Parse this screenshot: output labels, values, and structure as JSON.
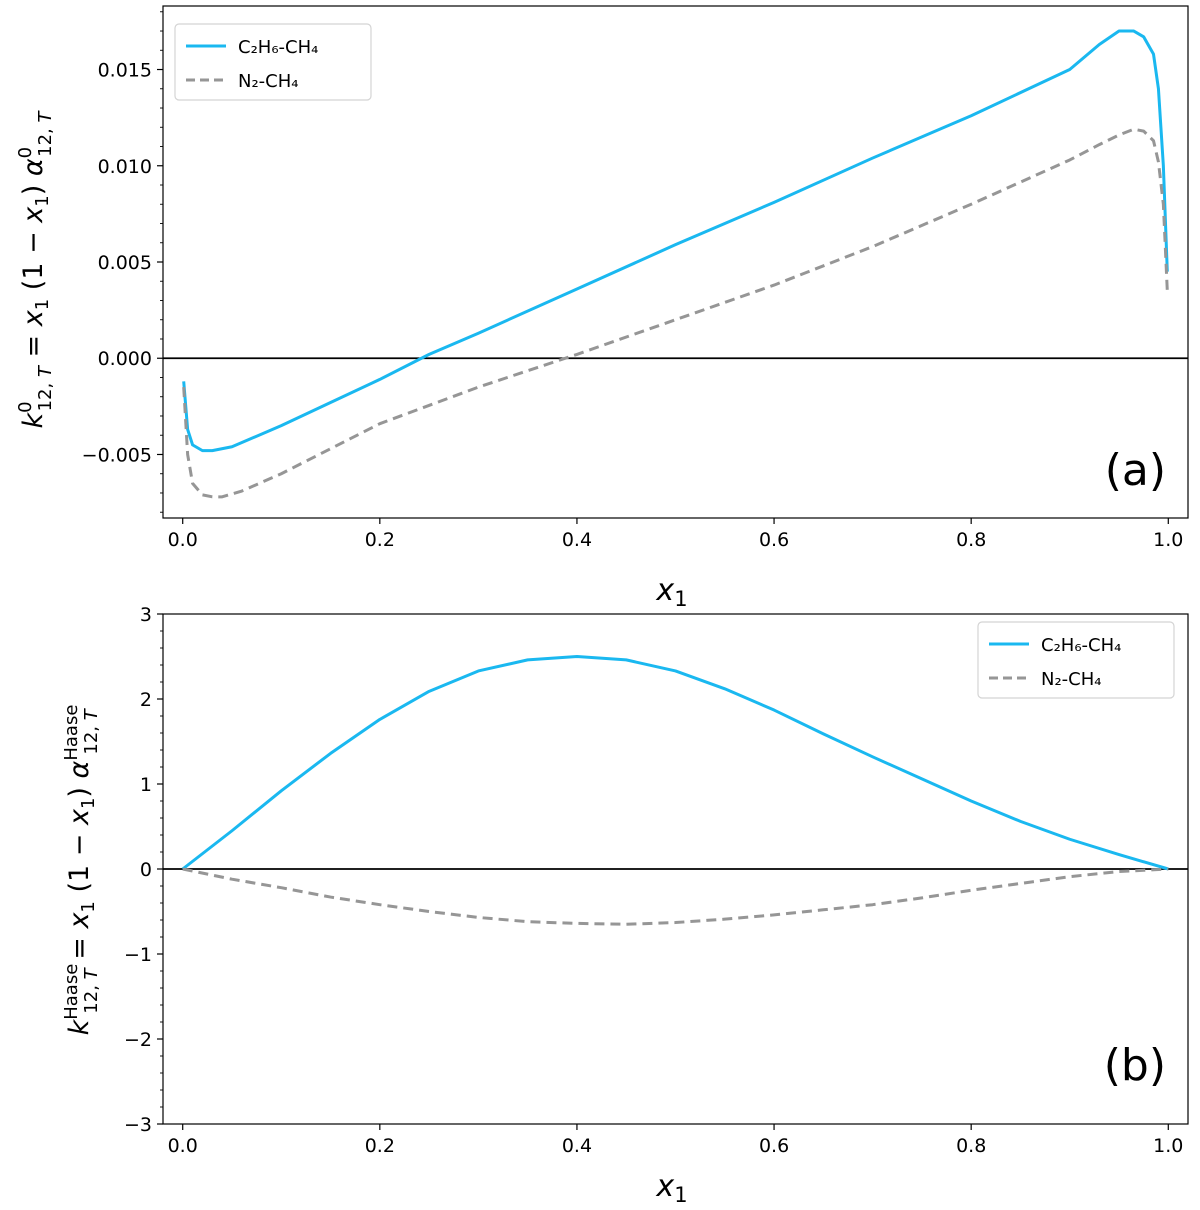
{
  "chart_data": [
    {
      "type": "line",
      "panel_label": "(a)",
      "xlabel": "x1",
      "ylabel": "k⁰12,T = x1 (1 − x1) α⁰12,T",
      "xlim": [
        -0.02,
        1.02
      ],
      "ylim": [
        -0.0083,
        0.0183
      ],
      "xticks": [
        "0.0",
        "0.2",
        "0.4",
        "0.6",
        "0.8",
        "1.0"
      ],
      "yticks": [
        "−0.005",
        "0.000",
        "0.005",
        "0.010",
        "0.015"
      ],
      "ytick_values": [
        -0.005,
        0.0,
        0.005,
        0.01,
        0.015
      ],
      "legend_position": "top-left",
      "grid": false,
      "series": [
        {
          "name": "C₂H₆-CH₄",
          "color": "#1ab8f0",
          "style": "solid",
          "x": [
            0.001,
            0.005,
            0.01,
            0.02,
            0.03,
            0.05,
            0.1,
            0.15,
            0.2,
            0.25,
            0.3,
            0.4,
            0.5,
            0.6,
            0.7,
            0.8,
            0.9,
            0.93,
            0.95,
            0.965,
            0.975,
            0.985,
            0.99,
            0.995,
            0.999
          ],
          "y": [
            -0.0012,
            -0.0037,
            -0.0045,
            -0.0048,
            -0.0048,
            -0.0046,
            -0.0035,
            -0.0023,
            -0.0011,
            0.0002,
            0.0013,
            0.0036,
            0.0059,
            0.0081,
            0.0104,
            0.0126,
            0.015,
            0.0163,
            0.017,
            0.017,
            0.0167,
            0.0158,
            0.014,
            0.01,
            0.0045
          ]
        },
        {
          "name": "N₂-CH₄",
          "color": "#969696",
          "style": "dashed",
          "x": [
            0.001,
            0.005,
            0.01,
            0.02,
            0.03,
            0.04,
            0.06,
            0.1,
            0.15,
            0.2,
            0.3,
            0.4,
            0.5,
            0.6,
            0.7,
            0.8,
            0.9,
            0.93,
            0.95,
            0.965,
            0.975,
            0.985,
            0.99,
            0.995,
            0.999
          ],
          "y": [
            -0.0015,
            -0.005,
            -0.0065,
            -0.0071,
            -0.0072,
            -0.0072,
            -0.0069,
            -0.006,
            -0.0047,
            -0.0034,
            -0.0015,
            0.0002,
            0.002,
            0.0038,
            0.0058,
            0.008,
            0.0103,
            0.0111,
            0.0116,
            0.0119,
            0.0118,
            0.0113,
            0.0102,
            0.008,
            0.0035
          ]
        }
      ]
    },
    {
      "type": "line",
      "panel_label": "(b)",
      "xlabel": "x1",
      "ylabel": "kHaase12,T = x1 (1 − x1) αHaase12,T",
      "xlim": [
        -0.02,
        1.02
      ],
      "ylim": [
        -3,
        3
      ],
      "xticks": [
        "0.0",
        "0.2",
        "0.4",
        "0.6",
        "0.8",
        "1.0"
      ],
      "yticks": [
        "−3",
        "−2",
        "−1",
        "0",
        "1",
        "2",
        "3"
      ],
      "ytick_values": [
        -3,
        -2,
        -1,
        0,
        1,
        2,
        3
      ],
      "legend_position": "top-right",
      "grid": false,
      "series": [
        {
          "name": "C₂H₆-CH₄",
          "color": "#1ab8f0",
          "style": "solid",
          "x": [
            0.0,
            0.05,
            0.1,
            0.15,
            0.2,
            0.25,
            0.3,
            0.35,
            0.4,
            0.45,
            0.5,
            0.55,
            0.6,
            0.65,
            0.7,
            0.75,
            0.8,
            0.85,
            0.9,
            0.95,
            1.0
          ],
          "y": [
            0.0,
            0.45,
            0.92,
            1.36,
            1.76,
            2.09,
            2.33,
            2.46,
            2.5,
            2.46,
            2.33,
            2.12,
            1.87,
            1.59,
            1.32,
            1.06,
            0.8,
            0.56,
            0.35,
            0.17,
            0.0
          ]
        },
        {
          "name": "N₂-CH₄",
          "color": "#969696",
          "style": "dashed",
          "x": [
            0.0,
            0.05,
            0.1,
            0.15,
            0.2,
            0.25,
            0.3,
            0.35,
            0.4,
            0.45,
            0.5,
            0.55,
            0.6,
            0.65,
            0.7,
            0.75,
            0.8,
            0.85,
            0.9,
            0.95,
            1.0
          ],
          "y": [
            0.0,
            -0.12,
            -0.22,
            -0.33,
            -0.42,
            -0.5,
            -0.57,
            -0.62,
            -0.64,
            -0.65,
            -0.63,
            -0.59,
            -0.54,
            -0.48,
            -0.42,
            -0.34,
            -0.25,
            -0.17,
            -0.09,
            -0.03,
            0.0
          ]
        }
      ]
    }
  ]
}
